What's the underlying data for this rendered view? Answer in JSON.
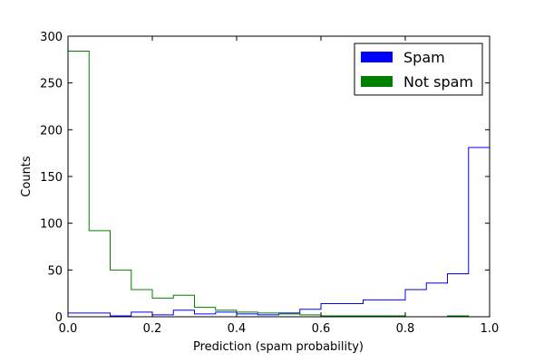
{
  "chart_data": {
    "type": "histogram",
    "xlabel": "Prediction (spam probability)",
    "ylabel": "Counts",
    "xlim": [
      0.0,
      1.0
    ],
    "ylim": [
      0,
      300
    ],
    "x_ticks": [
      "0.0",
      "0.2",
      "0.4",
      "0.6",
      "0.8",
      "1.0"
    ],
    "y_ticks": [
      "0",
      "50",
      "100",
      "150",
      "200",
      "250",
      "300"
    ],
    "grid": false,
    "legend_position": "top-right",
    "bin_edges": [
      0.0,
      0.05,
      0.1,
      0.15,
      0.2,
      0.25,
      0.3,
      0.35,
      0.4,
      0.45,
      0.5,
      0.55,
      0.6,
      0.65,
      0.7,
      0.75,
      0.8,
      0.85,
      0.9,
      0.95,
      1.0
    ],
    "series": [
      {
        "name": "Spam",
        "color": "#0000ff",
        "values": [
          4,
          4,
          1,
          5,
          2,
          7,
          3,
          5,
          3,
          2,
          4,
          8,
          14,
          14,
          18,
          18,
          29,
          36,
          46,
          181
        ]
      },
      {
        "name": "Not spam",
        "color": "#008000",
        "values": [
          284,
          92,
          50,
          29,
          20,
          23,
          10,
          7,
          5,
          4,
          3,
          2,
          1,
          1,
          1,
          1,
          0,
          0,
          1,
          0
        ]
      }
    ]
  }
}
